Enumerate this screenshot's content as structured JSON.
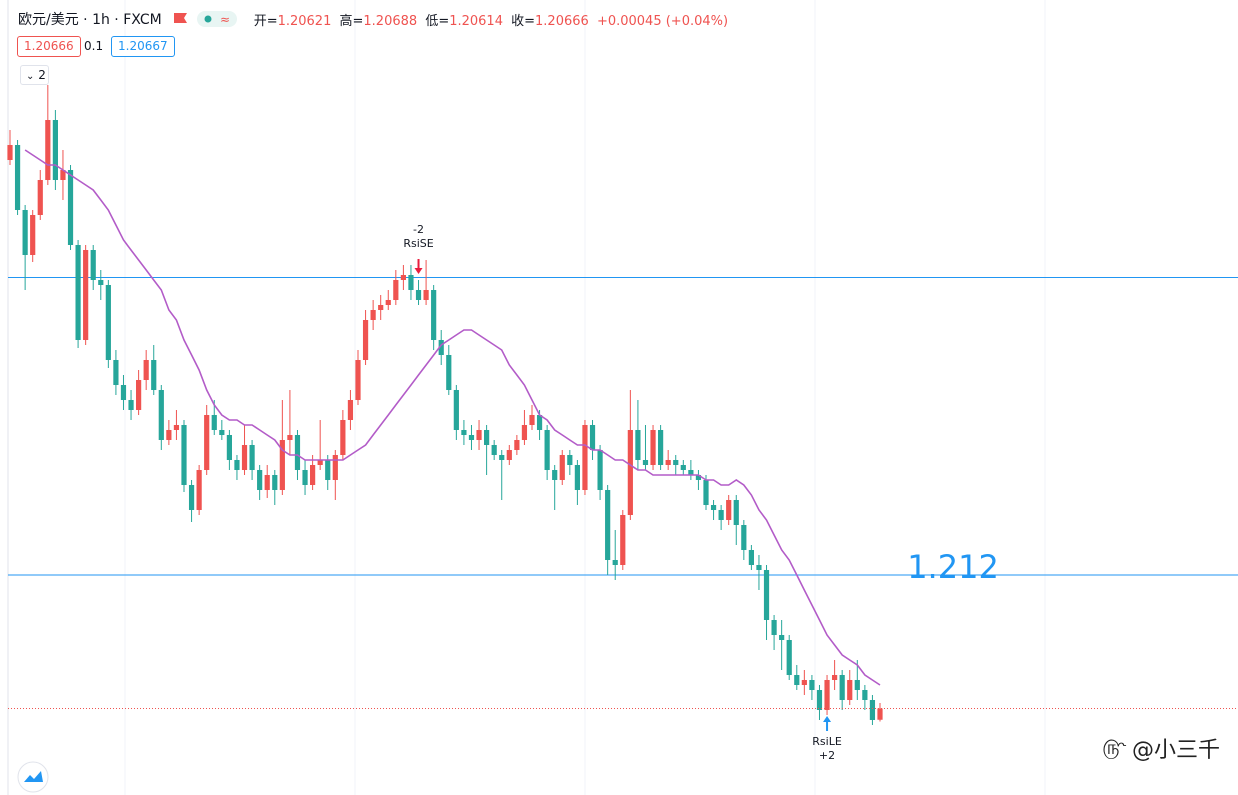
{
  "header": {
    "symbol": "欧元/美元 · 1h · FXCM",
    "ohlc_labels": [
      "开=",
      "高=",
      "低=",
      "收="
    ],
    "change": "+0.00045",
    "change_pct": "(+0.04%)",
    "sell": 1.20666,
    "spread": 0.1,
    "buy": 1.20667,
    "indicator_count": 2
  },
  "watermark": "@小三千",
  "chart_data": {
    "type": "candlestick",
    "ylim": [
      1.2032,
      1.235
    ],
    "up_color": "#ef5350",
    "down_color": "#26a69a",
    "ma_color": "#b35cc8",
    "hline_color": "#2196f3",
    "open": [
      1.2286,
      1.2292,
      1.2266,
      1.2248,
      1.2264,
      1.2278,
      1.2302,
      1.2278,
      1.2282,
      1.2252,
      1.2214,
      1.225,
      1.2238,
      1.2236,
      1.2206,
      1.2196,
      1.219,
      1.2186,
      1.2198,
      1.2206,
      1.2194,
      1.2174,
      1.2178,
      1.218,
      1.2156,
      1.2146,
      1.2162,
      1.2184,
      1.2178,
      1.2176,
      1.2166,
      1.2162,
      1.2172,
      1.2162,
      1.2154,
      1.216,
      1.2154,
      1.2174,
      1.2176,
      1.2162,
      1.2156,
      1.2164,
      1.2166,
      1.2158,
      1.2168,
      1.2182,
      1.219,
      1.2206,
      1.2222,
      1.2226,
      1.2228,
      1.223,
      1.2238,
      1.224,
      1.2234,
      1.223,
      1.2234,
      1.2214,
      1.2208,
      1.2194,
      1.2178,
      1.2176,
      1.2174,
      1.2178,
      1.2172,
      1.2168,
      1.2166,
      1.217,
      1.2174,
      1.218,
      1.2184,
      1.2178,
      1.2162,
      1.2158,
      1.2168,
      1.2164,
      1.2154,
      1.218,
      1.217,
      1.2154,
      1.2126,
      1.2124,
      1.2144,
      1.2178,
      1.2166,
      1.2164,
      1.2178,
      1.2164,
      1.2166,
      1.2164,
      1.2162,
      1.216,
      1.2158,
      1.2148,
      1.2146,
      1.2142,
      1.215,
      1.214,
      1.213,
      1.2124,
      1.2122,
      1.2102,
      1.2096,
      1.2094,
      1.208,
      1.2076,
      1.2078,
      1.2074,
      1.2066,
      1.2078,
      1.208,
      1.207,
      1.2078,
      1.2074,
      1.207,
      1.20621
    ],
    "high": [
      1.2298,
      1.2294,
      1.2268,
      1.2266,
      1.2282,
      1.2316,
      1.2306,
      1.229,
      1.2284,
      1.2254,
      1.2252,
      1.2252,
      1.2242,
      1.2238,
      1.221,
      1.22,
      1.2194,
      1.2202,
      1.221,
      1.2212,
      1.2196,
      1.2182,
      1.2186,
      1.2182,
      1.2158,
      1.2164,
      1.2188,
      1.219,
      1.2182,
      1.2178,
      1.2168,
      1.218,
      1.2174,
      1.2164,
      1.2164,
      1.2162,
      1.219,
      1.2194,
      1.2178,
      1.2166,
      1.2168,
      1.2182,
      1.2168,
      1.217,
      1.2186,
      1.2194,
      1.221,
      1.2226,
      1.223,
      1.2232,
      1.2234,
      1.2242,
      1.2244,
      1.2244,
      1.2238,
      1.2246,
      1.2236,
      1.2218,
      1.2212,
      1.2196,
      1.2182,
      1.218,
      1.2182,
      1.218,
      1.2174,
      1.217,
      1.2172,
      1.2176,
      1.2186,
      1.2188,
      1.2186,
      1.218,
      1.2164,
      1.217,
      1.217,
      1.2166,
      1.2182,
      1.2182,
      1.2172,
      1.2156,
      1.2138,
      1.2146,
      1.2194,
      1.219,
      1.218,
      1.218,
      1.218,
      1.217,
      1.2168,
      1.2166,
      1.2166,
      1.2162,
      1.216,
      1.215,
      1.2148,
      1.2152,
      1.2152,
      1.2142,
      1.2132,
      1.2128,
      1.2124,
      1.2104,
      1.2102,
      1.2096,
      1.2084,
      1.2082,
      1.208,
      1.2076,
      1.208,
      1.2086,
      1.2082,
      1.2082,
      1.2086,
      1.2076,
      1.2072,
      1.20688
    ],
    "low": [
      1.2284,
      1.2264,
      1.2234,
      1.22452,
      1.2262,
      1.2276,
      1.2274,
      1.227,
      1.225,
      1.22108,
      1.2212,
      1.2234,
      1.223,
      1.22028,
      1.2192,
      1.2186,
      1.2182,
      1.2184,
      1.2194,
      1.2192,
      1.217,
      1.2172,
      1.2174,
      1.21532,
      1.21412,
      1.2144,
      1.216,
      1.2176,
      1.2174,
      1.2162,
      1.2158,
      1.216,
      1.2158,
      1.215,
      1.21508,
      1.2148,
      1.2152,
      1.2168,
      1.2158,
      1.2152,
      1.2154,
      1.2162,
      1.2154,
      1.215,
      1.2166,
      1.2178,
      1.2188,
      1.2204,
      1.2218,
      1.2222,
      1.2226,
      1.2228,
      1.2234,
      1.223,
      1.2228,
      1.2228,
      1.221,
      1.2204,
      1.2192,
      1.2174,
      1.2172,
      1.217,
      1.217,
      1.216,
      1.2166,
      1.215,
      1.2164,
      1.2168,
      1.2172,
      1.2178,
      1.2174,
      1.2158,
      1.2146,
      1.2156,
      1.216,
      1.2148,
      1.2152,
      1.2166,
      1.215,
      1.212,
      1.2118,
      1.2122,
      1.2142,
      1.2162,
      1.2162,
      1.2162,
      1.2162,
      1.2162,
      1.216,
      1.216,
      1.2158,
      1.2154,
      1.2146,
      1.2142,
      1.2138,
      1.214,
      1.2132,
      1.2126,
      1.2122,
      1.2114,
      1.2094,
      1.209,
      1.2082,
      1.2078,
      1.2074,
      1.2072,
      1.207,
      1.2062,
      1.2064,
      1.2074,
      1.2066,
      1.2068,
      1.207,
      1.2066,
      1.206,
      1.20614
    ],
    "close": [
      1.2292,
      1.2266,
      1.2248,
      1.2264,
      1.2278,
      1.2302,
      1.2278,
      1.2282,
      1.2252,
      1.2214,
      1.225,
      1.2238,
      1.2236,
      1.2206,
      1.2196,
      1.219,
      1.2186,
      1.2198,
      1.2206,
      1.2194,
      1.2174,
      1.2178,
      1.218,
      1.2156,
      1.2146,
      1.2162,
      1.2184,
      1.2178,
      1.2176,
      1.2166,
      1.2162,
      1.2172,
      1.2162,
      1.2154,
      1.216,
      1.2154,
      1.2174,
      1.2176,
      1.2162,
      1.2156,
      1.2164,
      1.2166,
      1.2158,
      1.2168,
      1.2182,
      1.219,
      1.2206,
      1.2222,
      1.2226,
      1.2228,
      1.223,
      1.2238,
      1.224,
      1.2234,
      1.223,
      1.2234,
      1.2214,
      1.2208,
      1.2194,
      1.2178,
      1.2176,
      1.2174,
      1.2178,
      1.2172,
      1.2168,
      1.2166,
      1.217,
      1.2174,
      1.218,
      1.2184,
      1.2178,
      1.2162,
      1.2158,
      1.2168,
      1.2164,
      1.2154,
      1.218,
      1.217,
      1.2154,
      1.2126,
      1.2124,
      1.2144,
      1.2178,
      1.2166,
      1.2164,
      1.2178,
      1.2164,
      1.2166,
      1.2164,
      1.2162,
      1.216,
      1.2158,
      1.2148,
      1.2146,
      1.2142,
      1.215,
      1.214,
      1.213,
      1.2124,
      1.2122,
      1.2102,
      1.2096,
      1.2094,
      1.208,
      1.2076,
      1.2078,
      1.2074,
      1.2066,
      1.2078,
      1.208,
      1.207,
      1.2078,
      1.2074,
      1.207,
      1.2062,
      1.20666
    ],
    "ma": [
      null,
      null,
      1.229,
      1.2288,
      1.2286,
      1.2284,
      1.2284,
      1.2282,
      1.228,
      1.2278,
      1.2276,
      1.2274,
      1.227,
      1.2266,
      1.226,
      1.2254,
      1.225,
      1.2246,
      1.2242,
      1.2238,
      1.2234,
      1.2226,
      1.2222,
      1.2214,
      1.2208,
      1.2202,
      1.2194,
      1.2188,
      1.2184,
      1.2182,
      1.2182,
      1.218,
      1.218,
      1.2178,
      1.2176,
      1.2174,
      1.217,
      1.2168,
      1.2168,
      1.2166,
      1.2166,
      1.2166,
      1.2166,
      1.2166,
      1.2166,
      1.2168,
      1.217,
      1.2172,
      1.2176,
      1.218,
      1.2184,
      1.2188,
      1.2192,
      1.2196,
      1.22,
      1.2204,
      1.2208,
      1.2212,
      1.2214,
      1.2216,
      1.2218,
      1.2218,
      1.2216,
      1.2214,
      1.2212,
      1.221,
      1.2204,
      1.22,
      1.2196,
      1.219,
      1.2184,
      1.2182,
      1.2178,
      1.2176,
      1.2174,
      1.2172,
      1.2172,
      1.217,
      1.217,
      1.2168,
      1.2166,
      1.2166,
      1.2164,
      1.2162,
      1.2162,
      1.216,
      1.216,
      1.216,
      1.216,
      1.216,
      1.216,
      1.216,
      1.2158,
      1.2158,
      1.2156,
      1.2156,
      1.2158,
      1.2156,
      1.2152,
      1.2146,
      1.2142,
      1.2136,
      1.213,
      1.2126,
      1.212,
      1.2114,
      1.2108,
      1.2102,
      1.2096,
      1.2092,
      1.2088,
      1.2086,
      1.2084,
      1.208,
      1.2078,
      1.2076
    ],
    "hlines": [
      {
        "value": 1.2239
      },
      {
        "value": 1.212,
        "show_label": true
      }
    ],
    "signals": [
      {
        "index": 54,
        "side": "short",
        "qty": -2,
        "name": "RsiSE"
      },
      {
        "index": 108,
        "side": "long",
        "qty": "+2",
        "name": "RsiLE"
      }
    ]
  }
}
